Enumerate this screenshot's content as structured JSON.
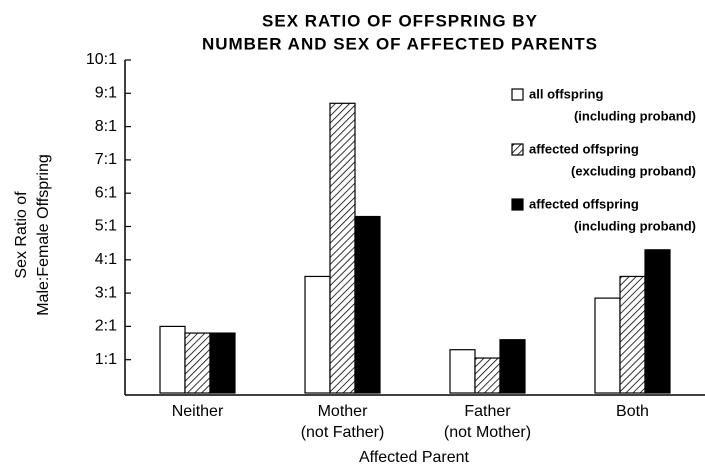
{
  "chart_data": {
    "type": "bar",
    "title": [
      "SEX RATIO OF OFFSPRING BY",
      "NUMBER AND SEX OF AFFECTED PARENTS"
    ],
    "y_label": [
      "Sex Ratio of",
      "Male:Female Offspring"
    ],
    "x_label": "Affected Parent",
    "categories": [
      [
        "Neither"
      ],
      [
        "Mother",
        "(not Father)"
      ],
      [
        "Father",
        "(not Mother)"
      ],
      [
        "Both"
      ]
    ],
    "series": [
      {
        "name": [
          "all offspring",
          "(including proband)"
        ],
        "color": "#ffffff",
        "values": [
          2.0,
          3.5,
          1.3,
          2.85
        ]
      },
      {
        "name": [
          "affected offspring",
          "(excluding proband)"
        ],
        "color": "#000000",
        "hatch": true,
        "values": [
          1.8,
          8.7,
          1.05,
          3.5
        ]
      },
      {
        "name": [
          "affected offspring",
          "(including proband)"
        ],
        "color": "#000000",
        "values": [
          1.8,
          5.3,
          1.6,
          4.3
        ]
      }
    ],
    "ylim": [
      0,
      10
    ],
    "yticks": [
      {
        "value": 1,
        "label": "1:1"
      },
      {
        "value": 2,
        "label": "2:1"
      },
      {
        "value": 3,
        "label": "3:1"
      },
      {
        "value": 4,
        "label": "4:1"
      },
      {
        "value": 5,
        "label": "5:1"
      },
      {
        "value": 6,
        "label": "6:1"
      },
      {
        "value": 7,
        "label": "7:1"
      },
      {
        "value": 8,
        "label": "8:1"
      },
      {
        "value": 9,
        "label": "9:1"
      },
      {
        "value": 10,
        "label": "10:1"
      }
    ],
    "legend": "upper right"
  }
}
